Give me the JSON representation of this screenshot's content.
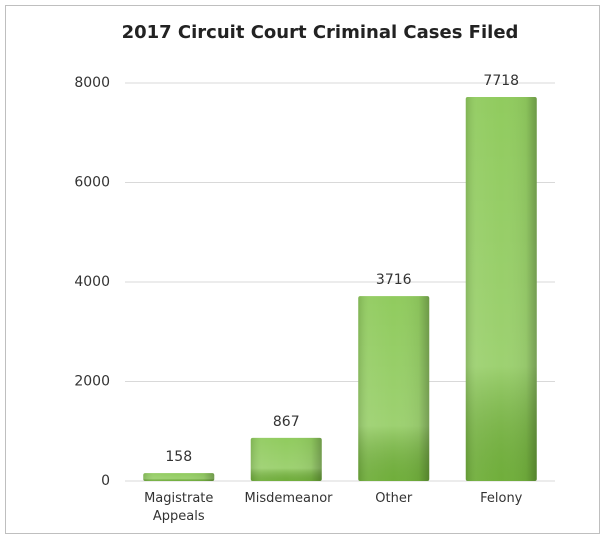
{
  "chart_data": {
    "type": "bar",
    "title": "2017 Circuit Court Criminal Cases Filed",
    "categories": [
      "Magistrate Appeals",
      "Misdemeanor",
      "Other",
      "Felony"
    ],
    "values": [
      158,
      867,
      3716,
      7718
    ],
    "color": "#7dc242",
    "ylim": [
      0,
      8000
    ],
    "yticks": [
      0,
      2000,
      4000,
      6000,
      8000
    ],
    "grid": true
  }
}
